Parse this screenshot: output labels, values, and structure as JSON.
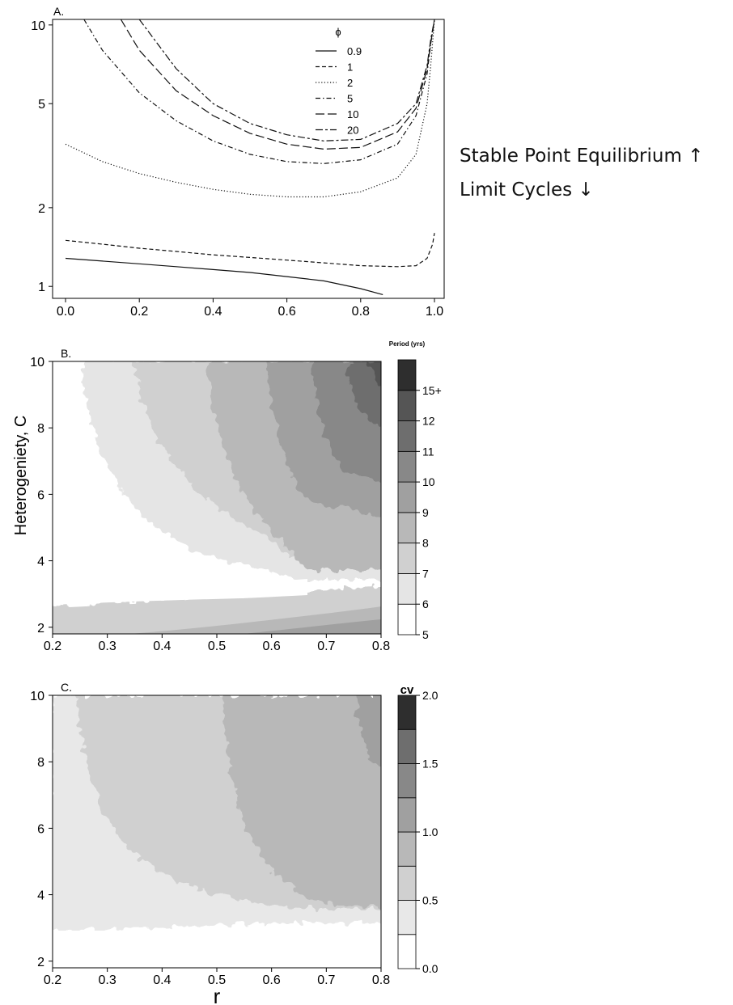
{
  "annotations": {
    "stable": "Stable Point Equilibrium ↑",
    "limit": "Limit Cycles ↓"
  },
  "chart_data": [
    {
      "panel": "A.",
      "type": "line",
      "y_scale": "log",
      "xlim": [
        0.0,
        1.0
      ],
      "ylim": [
        0.9,
        10.5
      ],
      "x_ticks": [
        "0.0",
        "0.2",
        "0.4",
        "0.6",
        "0.8",
        "1.0"
      ],
      "y_ticks": [
        "1",
        "2",
        "5",
        "10"
      ],
      "legend": {
        "title": "ϕ",
        "position": "top-right"
      },
      "series": [
        {
          "name": "0.9",
          "dash": "solid",
          "x": [
            0.0,
            0.1,
            0.2,
            0.3,
            0.4,
            0.5,
            0.6,
            0.7,
            0.8,
            0.86
          ],
          "y": [
            1.28,
            1.25,
            1.22,
            1.19,
            1.16,
            1.13,
            1.09,
            1.05,
            0.98,
            0.93
          ]
        },
        {
          "name": "1",
          "dash": "dashed",
          "x": [
            0.0,
            0.1,
            0.2,
            0.3,
            0.4,
            0.5,
            0.6,
            0.7,
            0.8,
            0.9,
            0.95,
            0.98,
            0.995,
            1.0
          ],
          "y": [
            1.5,
            1.45,
            1.4,
            1.36,
            1.32,
            1.29,
            1.26,
            1.23,
            1.2,
            1.19,
            1.2,
            1.28,
            1.45,
            1.6
          ]
        },
        {
          "name": "2",
          "dash": "dotted",
          "x": [
            0.0,
            0.1,
            0.2,
            0.3,
            0.4,
            0.5,
            0.6,
            0.7,
            0.8,
            0.9,
            0.95,
            0.98,
            0.99,
            1.0
          ],
          "y": [
            3.5,
            3.0,
            2.7,
            2.5,
            2.35,
            2.25,
            2.2,
            2.2,
            2.3,
            2.6,
            3.2,
            5.0,
            7.0,
            10.5
          ]
        },
        {
          "name": "5",
          "dash": "dashdot",
          "x": [
            0.05,
            0.1,
            0.2,
            0.3,
            0.4,
            0.5,
            0.6,
            0.7,
            0.8,
            0.9,
            0.95,
            0.98,
            0.99,
            1.0
          ],
          "y": [
            10.5,
            8.0,
            5.5,
            4.3,
            3.6,
            3.2,
            3.0,
            2.95,
            3.05,
            3.5,
            4.5,
            6.5,
            8.5,
            10.5
          ]
        },
        {
          "name": "10",
          "dash": "longdash",
          "x": [
            0.15,
            0.2,
            0.3,
            0.4,
            0.5,
            0.6,
            0.7,
            0.8,
            0.9,
            0.95,
            0.98,
            0.99,
            1.0
          ],
          "y": [
            10.5,
            8.0,
            5.6,
            4.5,
            3.85,
            3.5,
            3.35,
            3.4,
            3.9,
            4.8,
            6.8,
            8.5,
            10.5
          ]
        },
        {
          "name": "20",
          "dash": "twodash",
          "x": [
            0.2,
            0.3,
            0.4,
            0.5,
            0.6,
            0.7,
            0.8,
            0.9,
            0.95,
            0.98,
            0.99,
            1.0
          ],
          "y": [
            10.5,
            6.8,
            5.0,
            4.2,
            3.8,
            3.6,
            3.65,
            4.2,
            5.0,
            7.0,
            8.8,
            10.5
          ]
        }
      ]
    },
    {
      "panel": "B.",
      "type": "heatmap",
      "xlim": [
        0.2,
        0.8
      ],
      "ylim": [
        1.8,
        10
      ],
      "x_ticks": [
        "0.2",
        "0.3",
        "0.4",
        "0.5",
        "0.6",
        "0.7",
        "0.8"
      ],
      "y_ticks": [
        "2",
        "4",
        "6",
        "8",
        "10"
      ],
      "ylabel": "Heterogeniety, C",
      "colorbar": {
        "title": "Period (yrs)",
        "labels": [
          "5",
          "6",
          "7",
          "8",
          "9",
          "10",
          "11",
          "12",
          "15+"
        ],
        "colors": [
          "#ffffff",
          "#e5e5e5",
          "#d0d0d0",
          "#b8b8b8",
          "#a0a0a0",
          "#888888",
          "#6e6e6e",
          "#555555",
          "#2e2e2e"
        ]
      }
    },
    {
      "panel": "C.",
      "type": "heatmap",
      "xlim": [
        0.2,
        0.8
      ],
      "ylim": [
        1.8,
        10
      ],
      "x_ticks": [
        "0.2",
        "0.3",
        "0.4",
        "0.5",
        "0.6",
        "0.7",
        "0.8"
      ],
      "y_ticks": [
        "2",
        "4",
        "6",
        "8",
        "10"
      ],
      "xlabel": "r",
      "colorbar": {
        "title": "cv",
        "labels": [
          "0.0",
          "0.5",
          "1.0",
          "1.5",
          "2.0"
        ],
        "colors": [
          "#ffffff",
          "#e8e8e8",
          "#d0d0d0",
          "#b8b8b8",
          "#a0a0a0",
          "#888888",
          "#6e6e6e",
          "#2e2e2e"
        ]
      }
    }
  ]
}
